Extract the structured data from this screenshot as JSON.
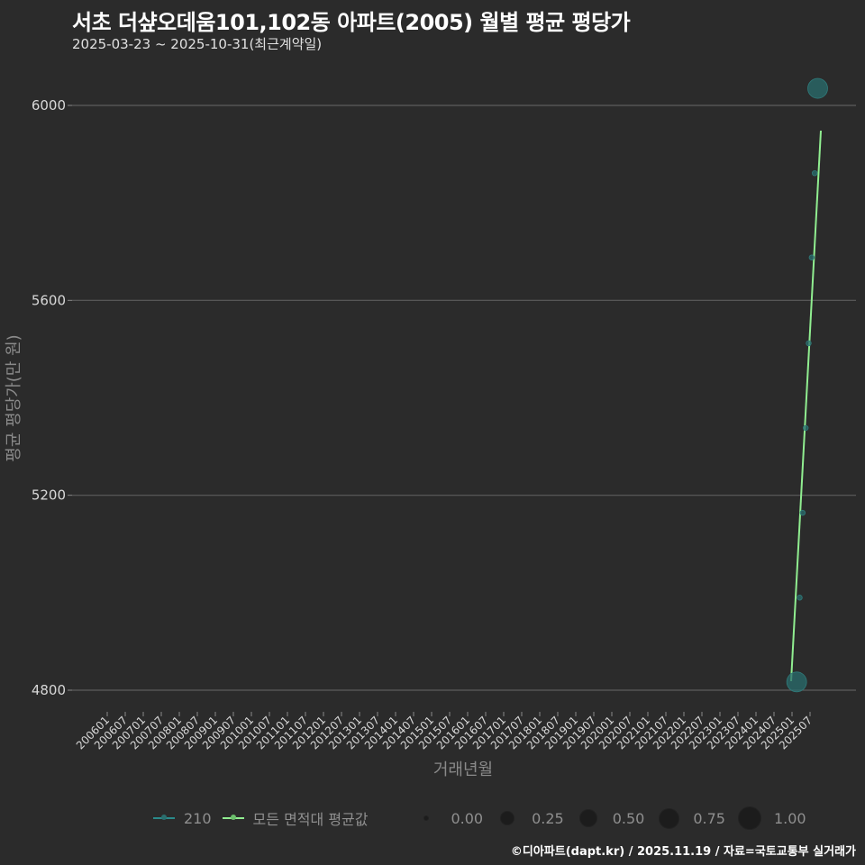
{
  "header": {
    "title": "서초 더샾오데움101,102동 아파트(2005) 월별 평균 평당가",
    "subtitle": "2025-03-23 ~ 2025-10-31(최근계약일)"
  },
  "axes": {
    "y_label": "평균 평당가(만 원)",
    "x_label": "거래년월"
  },
  "legend": {
    "series": [
      {
        "label": "210",
        "color": "#2a8a8a"
      },
      {
        "label": "모든 면적대 평균값",
        "color": "#90ee90"
      }
    ],
    "sizes": [
      {
        "label": "0.00",
        "d": 4
      },
      {
        "label": "0.25",
        "d": 14
      },
      {
        "label": "0.50",
        "d": 18
      },
      {
        "label": "0.75",
        "d": 21
      },
      {
        "label": "1.00",
        "d": 24
      }
    ]
  },
  "footer": {
    "credit": "©디아파트(dapt.kr) / 2025.11.19 / 자료=국토교통부 실거래가"
  },
  "colors": {
    "background": "#2b2b2b",
    "grid": "#5c5c5c",
    "series_210": "#2a6e6e",
    "average_line": "#90ee90"
  },
  "chart_data": {
    "type": "line",
    "title": "서초 더샾오데움101,102동 아파트(2005) 월별 평균 평당가",
    "subtitle": "2025-03-23 ~ 2025-10-31(최근계약일)",
    "xlabel": "거래년월",
    "ylabel": "평균 평당가(만 원)",
    "ylim": [
      4780,
      6060
    ],
    "yticks": [
      4800,
      5200,
      5600,
      6000
    ],
    "xticks": [
      "200601",
      "200607",
      "200701",
      "200707",
      "200801",
      "200807",
      "200901",
      "200907",
      "201001",
      "201007",
      "201101",
      "201107",
      "201201",
      "201207",
      "201301",
      "201307",
      "201401",
      "201407",
      "201501",
      "201507",
      "201601",
      "201607",
      "201701",
      "201707",
      "201801",
      "201807",
      "201901",
      "201907",
      "202001",
      "202007",
      "202101",
      "202107",
      "202201",
      "202207",
      "202301",
      "202307",
      "202401",
      "202407",
      "202501",
      "202507"
    ],
    "grid": true,
    "legend_position": "bottom",
    "series": [
      {
        "name": "210",
        "type": "scatter",
        "x": [
          "202503",
          "202504",
          "202505",
          "202506",
          "202507",
          "202508",
          "202509",
          "202510"
        ],
        "values": [
          4817,
          4990,
          5164,
          5338,
          5512,
          5688,
          5861,
          6035
        ],
        "sizes": [
          1.0,
          0.0,
          0.0,
          0.0,
          0.0,
          0.0,
          0.0,
          1.0
        ]
      },
      {
        "name": "모든 면적대 평균값",
        "type": "line",
        "x": [
          "202503",
          "202510"
        ],
        "values": [
          4820,
          5945
        ]
      }
    ]
  }
}
